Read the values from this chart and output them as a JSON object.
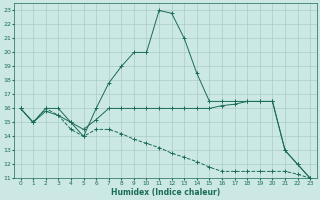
{
  "xlabel": "Humidex (Indice chaleur)",
  "background_color": "#cce8e4",
  "grid_color": "#aaccc8",
  "line_color": "#1a6b5a",
  "xlim": [
    -0.5,
    23.5
  ],
  "ylim": [
    11,
    23.5
  ],
  "xticks": [
    0,
    1,
    2,
    3,
    4,
    5,
    6,
    7,
    8,
    9,
    10,
    11,
    12,
    13,
    14,
    15,
    16,
    17,
    18,
    19,
    20,
    21,
    22,
    23
  ],
  "yticks": [
    11,
    12,
    13,
    14,
    15,
    16,
    17,
    18,
    19,
    20,
    21,
    22,
    23
  ],
  "series1_x": [
    0,
    1,
    2,
    3,
    4,
    5,
    6,
    7,
    8,
    9,
    10,
    11,
    12,
    13,
    14,
    15,
    16,
    17,
    18,
    19,
    20,
    21,
    22,
    23
  ],
  "series1_y": [
    16,
    15,
    16,
    16,
    15,
    14,
    16,
    17.8,
    19,
    20,
    20,
    23,
    22.8,
    21,
    18.5,
    16.5,
    16.5,
    16.5,
    16.5,
    16.5,
    16.5,
    13,
    12,
    11
  ],
  "series2_x": [
    0,
    1,
    2,
    3,
    4,
    5,
    6,
    7,
    8,
    9,
    10,
    11,
    12,
    13,
    14,
    15,
    16,
    17,
    18,
    19,
    20,
    21,
    22,
    23
  ],
  "series2_y": [
    16,
    15,
    15.8,
    15.5,
    15,
    14.5,
    15.2,
    16,
    16,
    16,
    16,
    16,
    16,
    16,
    16,
    16,
    16.2,
    16.3,
    16.5,
    16.5,
    16.5,
    13,
    12,
    11
  ],
  "series3_x": [
    0,
    1,
    2,
    3,
    4,
    5,
    6,
    7,
    8,
    9,
    10,
    11,
    12,
    13,
    14,
    15,
    16,
    17,
    18,
    19,
    20,
    21,
    22,
    23
  ],
  "series3_y": [
    16,
    15,
    16,
    15.5,
    14.5,
    14,
    14.5,
    14.5,
    14.2,
    13.8,
    13.5,
    13.2,
    12.8,
    12.5,
    12.2,
    11.8,
    11.5,
    11.5,
    11.5,
    11.5,
    11.5,
    11.5,
    11.3,
    11
  ]
}
